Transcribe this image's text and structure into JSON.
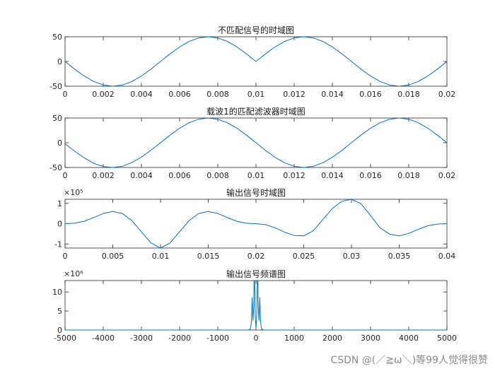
{
  "watermark": "CSDN @(／≧ω＼)等99人觉得很赞",
  "colors": {
    "series": "#0072BD",
    "axes": "#262626"
  },
  "chart_data": [
    {
      "type": "line",
      "title": "不匹配信号的时域图",
      "xlim": [
        0,
        0.02
      ],
      "ylim": [
        -50,
        50
      ],
      "x_ticks": [
        "0",
        "0.002",
        "0.004",
        "0.006",
        "0.008",
        "0.01",
        "0.012",
        "0.014",
        "0.016",
        "0.018",
        "0.02"
      ],
      "y_ticks": [
        "50",
        "0",
        "-50"
      ],
      "y_exponent": "",
      "grid": false,
      "series": [
        {
          "x": [
            0,
            0.0005,
            0.001,
            0.0015,
            0.002,
            0.0025,
            0.003,
            0.0035,
            0.004,
            0.0045,
            0.005,
            0.0055,
            0.006,
            0.0065,
            0.007,
            0.0075,
            0.008,
            0.0085,
            0.009,
            0.0095,
            0.01,
            0.0105,
            0.011,
            0.0115,
            0.012,
            0.0125,
            0.013,
            0.0135,
            0.014,
            0.0145,
            0.015,
            0.0155,
            0.016,
            0.0165,
            0.017,
            0.0175,
            0.018,
            0.0185,
            0.019,
            0.0195,
            0.02
          ],
          "y": [
            0,
            -15.5,
            -29.4,
            -40.5,
            -47.6,
            -50,
            -47.6,
            -40.5,
            -29.4,
            -15.5,
            0,
            15.5,
            29.4,
            40.5,
            47.6,
            50,
            47.6,
            40.5,
            29.4,
            15.5,
            0,
            15.5,
            29.4,
            40.5,
            47.6,
            50,
            47.6,
            40.5,
            29.4,
            15.5,
            0,
            -15.5,
            -29.4,
            -40.5,
            -47.6,
            -50,
            -47.6,
            -40.5,
            -29.4,
            -15.5,
            0
          ]
        }
      ]
    },
    {
      "type": "line",
      "title": "载波1的匹配滤波器时域图",
      "xlim": [
        0,
        0.02
      ],
      "ylim": [
        -50,
        50
      ],
      "x_ticks": [
        "0",
        "0.002",
        "0.004",
        "0.006",
        "0.008",
        "0.01",
        "0.012",
        "0.014",
        "0.016",
        "0.018",
        "0.02"
      ],
      "y_ticks": [
        "50",
        "0",
        "-50"
      ],
      "y_exponent": "",
      "grid": false,
      "series": [
        {
          "x": [
            0,
            0.0005,
            0.001,
            0.0015,
            0.002,
            0.0025,
            0.003,
            0.0035,
            0.004,
            0.0045,
            0.005,
            0.0055,
            0.006,
            0.0065,
            0.007,
            0.0075,
            0.008,
            0.0085,
            0.009,
            0.0095,
            0.01,
            0.0105,
            0.011,
            0.0115,
            0.012,
            0.0125,
            0.013,
            0.0135,
            0.014,
            0.0145,
            0.015,
            0.0155,
            0.016,
            0.0165,
            0.017,
            0.0175,
            0.018,
            0.0185,
            0.019,
            0.0195,
            0.02
          ],
          "y": [
            -2,
            -17,
            -30.5,
            -41.5,
            -48,
            -50,
            -47.5,
            -40,
            -29,
            -15,
            0,
            15.5,
            29.4,
            40.5,
            47.6,
            50,
            47.6,
            40.5,
            29.4,
            15.5,
            0,
            -15.5,
            -29.4,
            -40.5,
            -47.6,
            -50,
            -47.6,
            -40.5,
            -29.4,
            -15.5,
            0,
            15.5,
            29.4,
            40.5,
            47.6,
            50,
            47.6,
            40.5,
            29.4,
            15.5,
            0
          ]
        }
      ]
    },
    {
      "type": "line",
      "title": "输出信号时域图",
      "xlim": [
        0,
        0.04
      ],
      "ylim": [
        -1.2,
        1.2
      ],
      "x_ticks": [
        "0",
        "0.005",
        "0.01",
        "0.015",
        "0.02",
        "0.025",
        "0.03",
        "0.035",
        "0.04"
      ],
      "y_ticks": [
        "1",
        "0",
        "-1"
      ],
      "y_exponent": "×10⁵",
      "grid": false,
      "series": [
        {
          "x": [
            0,
            0.001,
            0.002,
            0.003,
            0.004,
            0.005,
            0.006,
            0.007,
            0.008,
            0.009,
            0.01,
            0.011,
            0.012,
            0.013,
            0.014,
            0.015,
            0.016,
            0.017,
            0.018,
            0.019,
            0.02,
            0.021,
            0.022,
            0.023,
            0.024,
            0.025,
            0.026,
            0.027,
            0.028,
            0.029,
            0.03,
            0.031,
            0.032,
            0.033,
            0.034,
            0.035,
            0.036,
            0.037,
            0.038,
            0.039,
            0.04
          ],
          "y": [
            0,
            0.02,
            0.12,
            0.3,
            0.5,
            0.6,
            0.5,
            0.15,
            -0.4,
            -0.95,
            -1.2,
            -0.95,
            -0.4,
            0.15,
            0.5,
            0.6,
            0.5,
            0.3,
            0.12,
            0.02,
            0,
            -0.05,
            -0.2,
            -0.42,
            -0.58,
            -0.6,
            -0.35,
            0.2,
            0.75,
            1.1,
            1.2,
            0.98,
            0.4,
            -0.2,
            -0.52,
            -0.6,
            -0.48,
            -0.28,
            -0.1,
            -0.02,
            0
          ]
        }
      ]
    },
    {
      "type": "line",
      "title": "输出信号频谱图",
      "xlim": [
        -5000,
        5000
      ],
      "ylim": [
        0,
        13
      ],
      "x_ticks": [
        "-5000",
        "-4000",
        "-3000",
        "-2000",
        "-1000",
        "0",
        "1000",
        "2000",
        "3000",
        "4000",
        "5000"
      ],
      "y_ticks": [
        "10",
        "5",
        "0"
      ],
      "y_exponent": "×10⁶",
      "grid": false,
      "series": [
        {
          "x": [
            -5000,
            -200,
            -150,
            -120,
            -100,
            -80,
            -60,
            -50,
            -35,
            -20,
            0,
            20,
            35,
            50,
            60,
            80,
            100,
            120,
            150,
            200,
            5000
          ],
          "y": [
            0,
            0,
            0.2,
            2,
            8.5,
            2.5,
            6,
            13,
            13,
            4,
            0.5,
            4,
            13,
            13,
            6,
            2.5,
            8.5,
            2,
            0.2,
            0,
            0
          ]
        }
      ]
    }
  ]
}
